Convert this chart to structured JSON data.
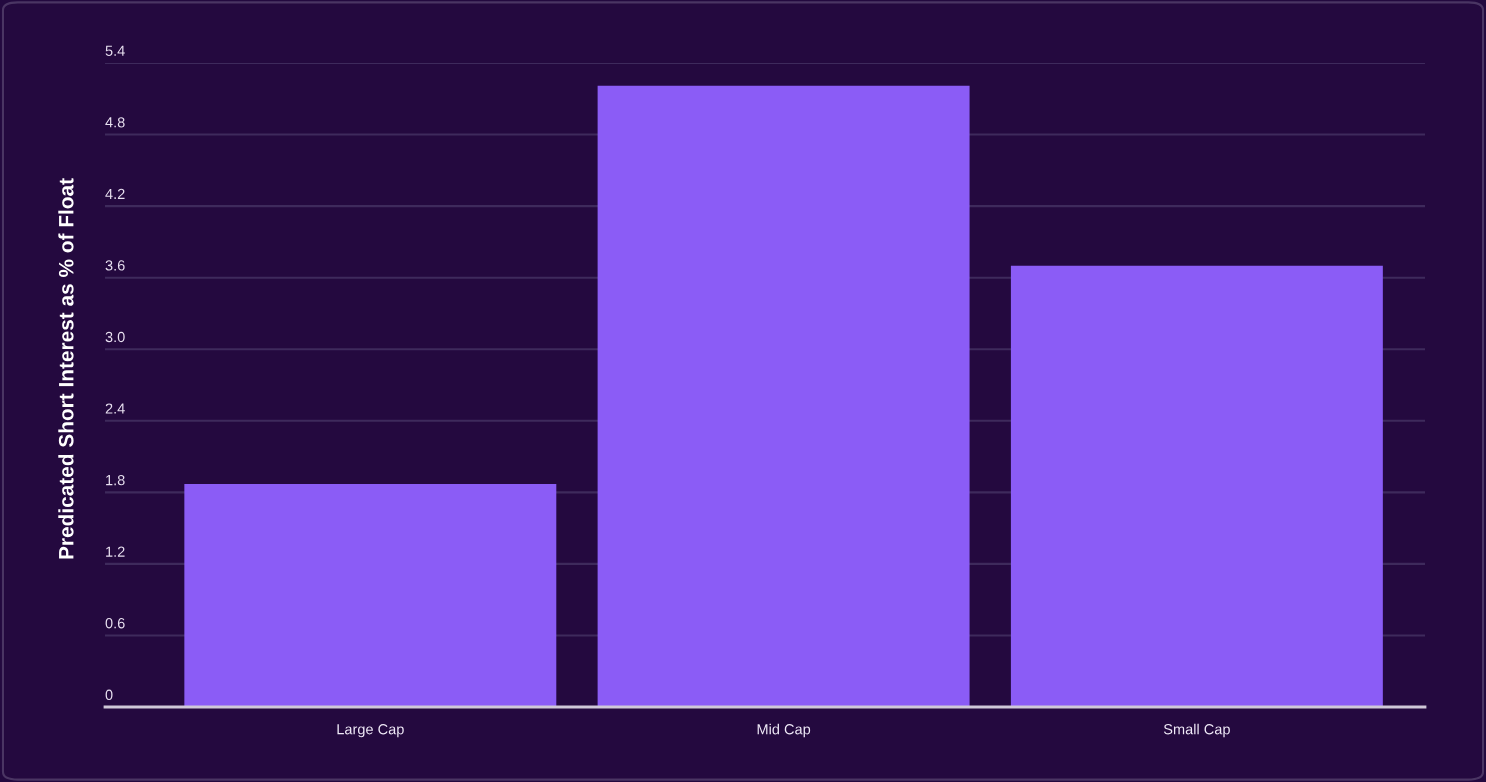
{
  "chart_data": {
    "type": "bar",
    "ylabel": "Predicated Short Interest as % of Float",
    "categories": [
      "Large Cap",
      "Mid Cap",
      "Small Cap"
    ],
    "values": [
      1.87,
      5.21,
      3.7
    ],
    "color": "#8b5cf6",
    "ylim": [
      0,
      5.4
    ],
    "yticks": [
      0,
      0.6,
      1.2,
      1.8,
      2.4,
      {
        "value": 3,
        "label": "3.0"
      },
      3.6,
      4.2,
      4.8,
      5.4
    ],
    "grid": "y",
    "legend": false
  }
}
